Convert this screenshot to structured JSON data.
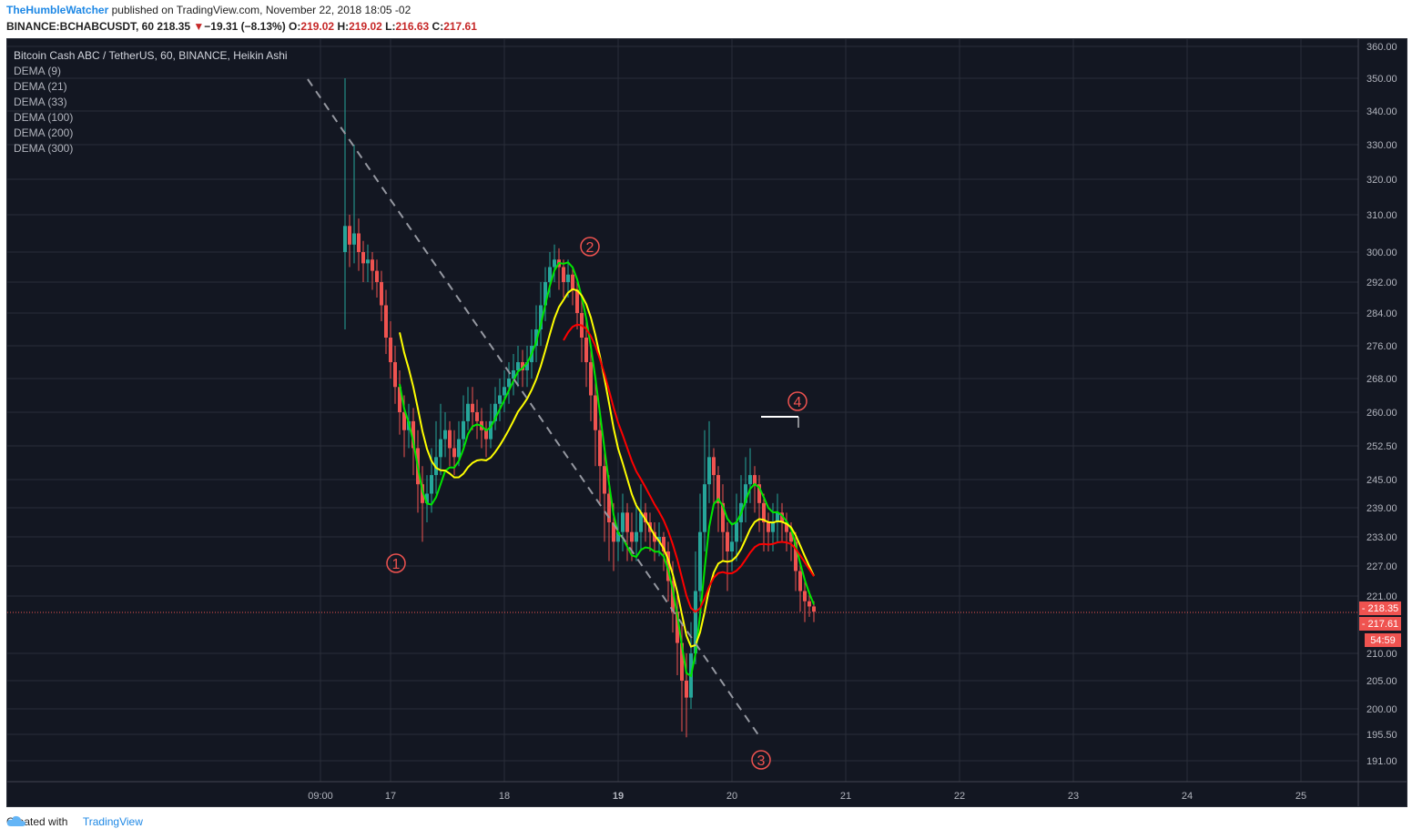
{
  "header": {
    "author": "TheHumbleWatcher",
    "published_text": "published on TradingView.com, November 22, 2018 18:05 -02",
    "symbol": "BINANCE:BCHABCUSDT, 60",
    "last": "218.35",
    "change_arrow": "▼",
    "change": "−19.31 (−8.13%)",
    "o_label": "O:",
    "o_value": "219.02",
    "h_label": "H:",
    "h_value": "219.02",
    "l_label": "L:",
    "l_value": "216.63",
    "c_label": "C:",
    "c_value": "217.61"
  },
  "legend": {
    "title": "Bitcoin Cash ABC / TetherUS, 60, BINANCE, Heikin Ashi",
    "indicators": [
      "DEMA (9)",
      "DEMA (21)",
      "DEMA (33)",
      "DEMA (100)",
      "DEMA (200)",
      "DEMA (300)"
    ]
  },
  "footer": {
    "created_with": "Created with",
    "brand": "TradingView"
  },
  "colors": {
    "background": "#131722",
    "grid": "#2a2e39",
    "up": "#26a69a",
    "down": "#ef5350",
    "dema_green": "#00e600",
    "dema_yellow": "#ffff00",
    "dema_red": "#ff0000",
    "wave_label": "#ef5350",
    "trendline": "#9598a1"
  },
  "chart_data": {
    "type": "candlestick",
    "style": "Heikin Ashi",
    "timeframe": "60",
    "x_ticks": [
      "09:00",
      "17",
      "18",
      "19",
      "20",
      "21",
      "22",
      "23",
      "24",
      "25"
    ],
    "y_ticks": [
      191.0,
      195.5,
      200.0,
      205.0,
      210.0,
      221.0,
      227.0,
      233.0,
      239.0,
      245.0,
      252.5,
      260.0,
      268.0,
      276.0,
      284.0,
      292.0,
      300.0,
      310.0,
      320.0,
      330.0,
      340.0,
      350.0,
      360.0
    ],
    "y_range": [
      188,
      361
    ],
    "last_price_labels": [
      "218.35",
      "217.61"
    ],
    "countdown_label": "54:59",
    "candles": [
      [
        16.6,
        300,
        307,
        350,
        280
      ],
      [
        16.64,
        307,
        302,
        310,
        296
      ],
      [
        16.68,
        302,
        305,
        330,
        297
      ],
      [
        16.72,
        305,
        300,
        309,
        295
      ],
      [
        16.76,
        300,
        297,
        303,
        292
      ],
      [
        16.8,
        297,
        298,
        302,
        292
      ],
      [
        16.84,
        298,
        295,
        300,
        290
      ],
      [
        16.88,
        295,
        292,
        298,
        288
      ],
      [
        16.92,
        292,
        286,
        295,
        282
      ],
      [
        16.96,
        286,
        278,
        290,
        274
      ],
      [
        17.0,
        278,
        272,
        282,
        268
      ],
      [
        17.04,
        272,
        266,
        276,
        262
      ],
      [
        17.08,
        266,
        260,
        270,
        255
      ],
      [
        17.12,
        260,
        256,
        264,
        250
      ],
      [
        17.16,
        256,
        258,
        262,
        252
      ],
      [
        17.2,
        258,
        252,
        261,
        246
      ],
      [
        17.24,
        252,
        244,
        256,
        238
      ],
      [
        17.28,
        244,
        240,
        248,
        232
      ],
      [
        17.32,
        240,
        242,
        246,
        236
      ],
      [
        17.36,
        242,
        246,
        252,
        238
      ],
      [
        17.4,
        246,
        250,
        258,
        242
      ],
      [
        17.44,
        250,
        254,
        262,
        246
      ],
      [
        17.48,
        254,
        256,
        260,
        250
      ],
      [
        17.52,
        256,
        252,
        258,
        248
      ],
      [
        17.56,
        252,
        250,
        256,
        246
      ],
      [
        17.6,
        250,
        254,
        258,
        248
      ],
      [
        17.64,
        254,
        258,
        264,
        252
      ],
      [
        17.68,
        258,
        262,
        266,
        256
      ],
      [
        17.72,
        262,
        260,
        266,
        256
      ],
      [
        17.76,
        260,
        258,
        263,
        254
      ],
      [
        17.8,
        258,
        256,
        261,
        252
      ],
      [
        17.84,
        256,
        254,
        258,
        250
      ],
      [
        17.88,
        254,
        258,
        262,
        252
      ],
      [
        17.92,
        258,
        262,
        266,
        256
      ],
      [
        17.96,
        262,
        264,
        268,
        258
      ],
      [
        18.0,
        264,
        266,
        270,
        260
      ],
      [
        18.04,
        266,
        268,
        272,
        262
      ],
      [
        18.08,
        268,
        270,
        274,
        264
      ],
      [
        18.12,
        270,
        272,
        276,
        266
      ],
      [
        18.16,
        272,
        270,
        275,
        266
      ],
      [
        18.2,
        270,
        272,
        276,
        266
      ],
      [
        18.24,
        272,
        276,
        280,
        268
      ],
      [
        18.28,
        276,
        280,
        286,
        272
      ],
      [
        18.32,
        280,
        286,
        292,
        276
      ],
      [
        18.36,
        286,
        292,
        296,
        282
      ],
      [
        18.4,
        292,
        296,
        300,
        288
      ],
      [
        18.44,
        296,
        298,
        302,
        292
      ],
      [
        18.48,
        298,
        296,
        301,
        290
      ],
      [
        18.52,
        296,
        292,
        298,
        288
      ],
      [
        18.56,
        292,
        294,
        298,
        288
      ],
      [
        18.6,
        294,
        290,
        296,
        286
      ],
      [
        18.64,
        290,
        284,
        292,
        280
      ],
      [
        18.68,
        284,
        278,
        288,
        272
      ],
      [
        18.72,
        278,
        272,
        282,
        266
      ],
      [
        18.76,
        272,
        264,
        276,
        258
      ],
      [
        18.8,
        264,
        256,
        268,
        248
      ],
      [
        18.84,
        256,
        248,
        260,
        240
      ],
      [
        18.88,
        248,
        242,
        252,
        232
      ],
      [
        18.92,
        242,
        236,
        246,
        228
      ],
      [
        18.96,
        236,
        232,
        240,
        226
      ],
      [
        19.0,
        232,
        234,
        238,
        228
      ],
      [
        19.04,
        234,
        238,
        242,
        230
      ],
      [
        19.08,
        238,
        234,
        240,
        228
      ],
      [
        19.12,
        234,
        232,
        238,
        228
      ],
      [
        19.16,
        232,
        234,
        240,
        228
      ],
      [
        19.2,
        234,
        238,
        244,
        230
      ],
      [
        19.24,
        238,
        236,
        240,
        232
      ],
      [
        19.28,
        236,
        234,
        238,
        230
      ],
      [
        19.32,
        234,
        232,
        236,
        228
      ],
      [
        19.36,
        232,
        233,
        236,
        229
      ],
      [
        19.4,
        233,
        230,
        234,
        226
      ],
      [
        19.44,
        230,
        224,
        232,
        220
      ],
      [
        19.48,
        224,
        218,
        228,
        214
      ],
      [
        19.52,
        218,
        212,
        222,
        206
      ],
      [
        19.56,
        212,
        205,
        216,
        196
      ],
      [
        19.6,
        205,
        202,
        210,
        195
      ],
      [
        19.64,
        202,
        210,
        216,
        200
      ],
      [
        19.68,
        210,
        222,
        230,
        208
      ],
      [
        19.72,
        222,
        234,
        242,
        220
      ],
      [
        19.76,
        234,
        244,
        256,
        230
      ],
      [
        19.8,
        244,
        250,
        258,
        240
      ],
      [
        19.84,
        250,
        246,
        252,
        240
      ],
      [
        19.88,
        246,
        240,
        248,
        234
      ],
      [
        19.92,
        240,
        234,
        244,
        228
      ],
      [
        19.96,
        234,
        230,
        236,
        222
      ],
      [
        20.0,
        230,
        232,
        236,
        226
      ],
      [
        20.04,
        232,
        236,
        242,
        228
      ],
      [
        20.08,
        236,
        240,
        246,
        232
      ],
      [
        20.12,
        240,
        244,
        250,
        236
      ],
      [
        20.16,
        244,
        246,
        252,
        240
      ],
      [
        20.2,
        246,
        244,
        248,
        238
      ],
      [
        20.24,
        244,
        240,
        246,
        234
      ],
      [
        20.28,
        240,
        236,
        242,
        230
      ],
      [
        20.32,
        236,
        234,
        238,
        230
      ],
      [
        20.36,
        234,
        236,
        240,
        230
      ],
      [
        20.4,
        236,
        238,
        242,
        232
      ],
      [
        20.44,
        238,
        236,
        240,
        232
      ],
      [
        20.48,
        236,
        234,
        238,
        230
      ],
      [
        20.52,
        234,
        232,
        236,
        228
      ],
      [
        20.56,
        232,
        226,
        234,
        222
      ],
      [
        20.6,
        226,
        222,
        228,
        218
      ],
      [
        20.64,
        222,
        220,
        224,
        216
      ],
      [
        20.68,
        220,
        219,
        222,
        217
      ],
      [
        20.72,
        219,
        218,
        220,
        216
      ]
    ]
  }
}
